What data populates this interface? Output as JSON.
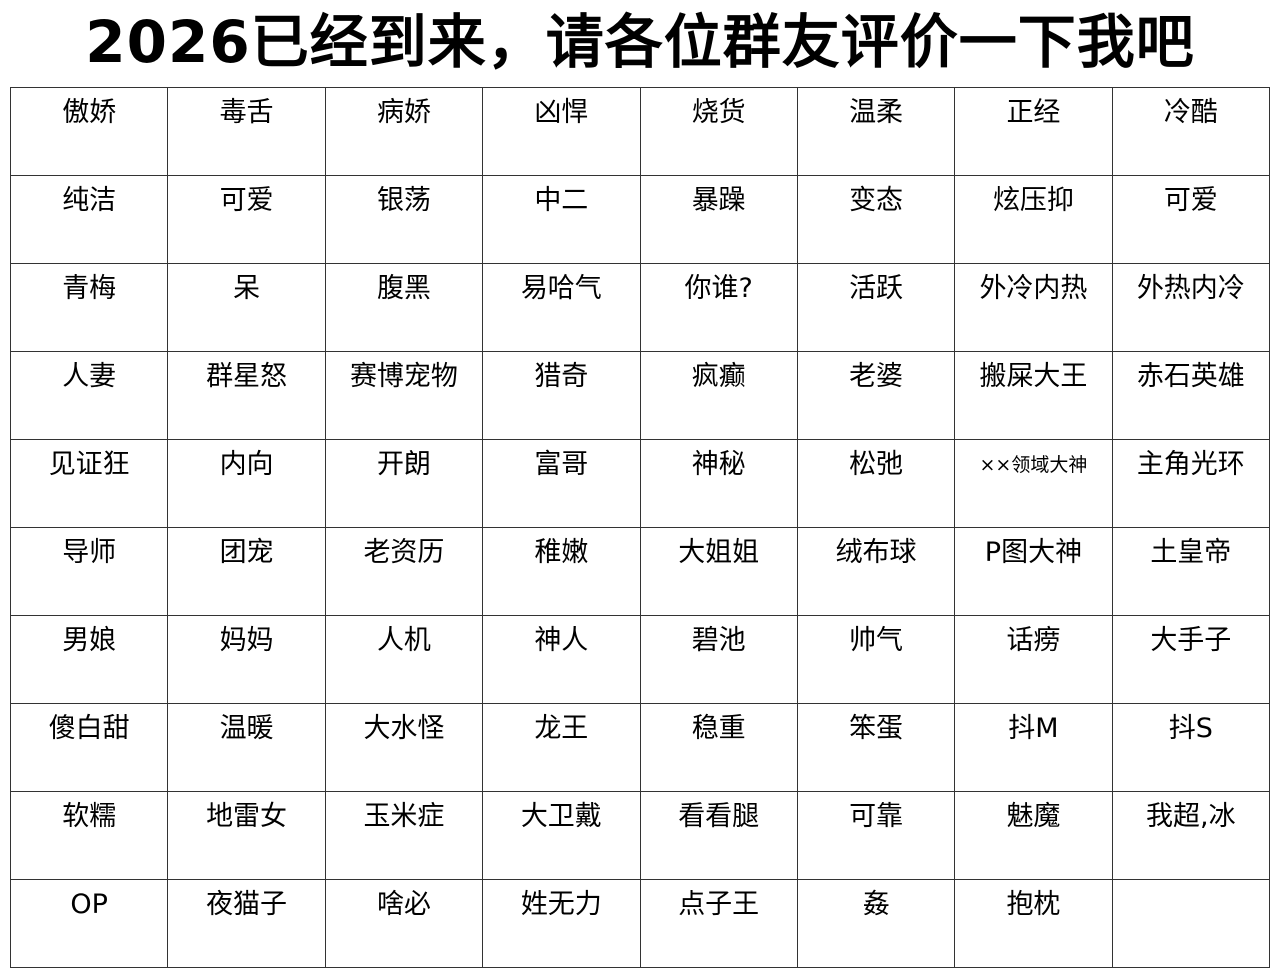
{
  "title": "2026已经到来，请各位群友评价一下我吧",
  "grid": [
    [
      "傲娇",
      "毒舌",
      "病娇",
      "凶悍",
      "烧货",
      "温柔",
      "正经",
      "冷酷"
    ],
    [
      "纯洁",
      "可爱",
      "银荡",
      "中二",
      "暴躁",
      "变态",
      "炫压抑",
      "可爱"
    ],
    [
      "青梅",
      "呆",
      "腹黑",
      "易哈气",
      "你谁?",
      "活跃",
      "外冷内热",
      "外热内冷"
    ],
    [
      "人妻",
      "群星怒",
      "赛博宠物",
      "猎奇",
      "疯癫",
      "老婆",
      "搬屎大王",
      "赤石英雄"
    ],
    [
      "见证狂",
      "内向",
      "开朗",
      "富哥",
      "神秘",
      "松弛",
      "××领域大神",
      "主角光环"
    ],
    [
      "导师",
      "团宠",
      "老资历",
      "稚嫩",
      "大姐姐",
      "绒布球",
      "P图大神",
      "土皇帝"
    ],
    [
      "男娘",
      "妈妈",
      "人机",
      "神人",
      "碧池",
      "帅气",
      "话痨",
      "大手子"
    ],
    [
      "傻白甜",
      "温暖",
      "大水怪",
      "龙王",
      "稳重",
      "笨蛋",
      "抖M",
      "抖S"
    ],
    [
      "软糯",
      "地雷女",
      "玉米症",
      "大卫戴",
      "看看腿",
      "可靠",
      "魅魔",
      "我超,冰"
    ],
    [
      "OP",
      "夜猫子",
      "啥必",
      "姓无力",
      "点子王",
      "姦",
      "抱枕",
      ""
    ]
  ]
}
